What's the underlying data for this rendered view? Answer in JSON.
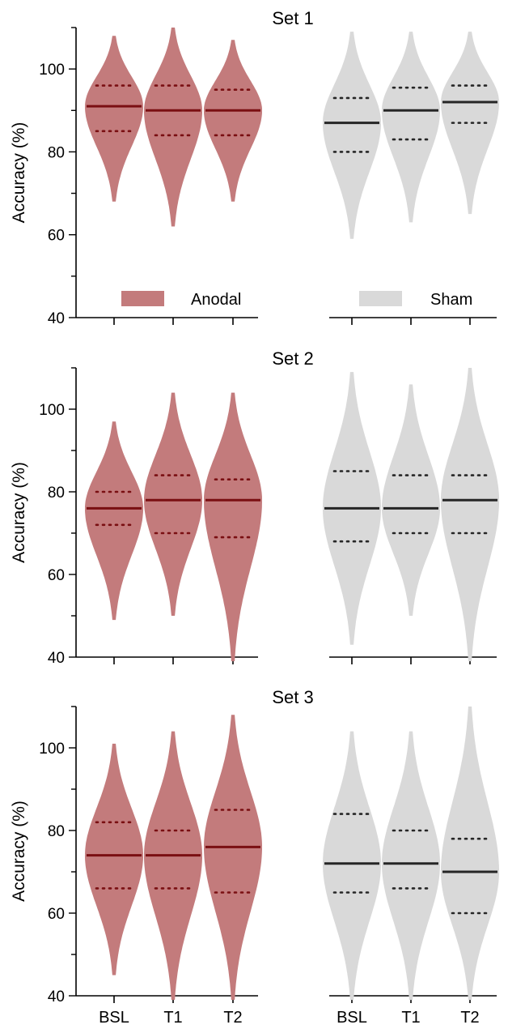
{
  "colors": {
    "anodal": "#c37b7c",
    "anodal_line": "#7a0f12",
    "sham": "#d9d9d9",
    "sham_line": "#262626"
  },
  "legend": {
    "anodal": "Anodal",
    "sham": "Sham"
  },
  "chart_data": [
    {
      "type": "violin",
      "title": "Set 1",
      "ylabel": "Accuracy (%)",
      "ylim": [
        40,
        110
      ],
      "yticks": [
        "40",
        "60",
        "80",
        "100"
      ],
      "legend": "bottom",
      "groups": [
        {
          "name": "Anodal",
          "series": [
            {
              "category": "BSL",
              "min": 68,
              "max": 108,
              "median": 91,
              "q1": 85,
              "q3": 96
            },
            {
              "category": "T1",
              "min": 62,
              "max": 110,
              "median": 90,
              "q1": 84,
              "q3": 96
            },
            {
              "category": "T2",
              "min": 68,
              "max": 107,
              "median": 90,
              "q1": 84,
              "q3": 95
            }
          ]
        },
        {
          "name": "Sham",
          "series": [
            {
              "category": "BSL",
              "min": 59,
              "max": 109,
              "median": 87,
              "q1": 80,
              "q3": 93
            },
            {
              "category": "T1",
              "min": 63,
              "max": 109,
              "median": 90,
              "q1": 83,
              "q3": 95.5
            },
            {
              "category": "T2",
              "min": 65,
              "max": 109,
              "median": 92,
              "q1": 87,
              "q3": 96
            }
          ]
        }
      ]
    },
    {
      "type": "violin",
      "title": "Set 2",
      "ylabel": "Accuracy (%)",
      "ylim": [
        40,
        110
      ],
      "yticks": [
        "40",
        "60",
        "80",
        "100"
      ],
      "groups": [
        {
          "name": "Anodal",
          "series": [
            {
              "category": "BSL",
              "min": 49,
              "max": 97,
              "median": 76,
              "q1": 72,
              "q3": 80
            },
            {
              "category": "T1",
              "min": 50,
              "max": 104,
              "median": 78,
              "q1": 70,
              "q3": 84
            },
            {
              "category": "T2",
              "min": 39,
              "max": 104,
              "median": 78,
              "q1": 69,
              "q3": 83
            }
          ]
        },
        {
          "name": "Sham",
          "series": [
            {
              "category": "BSL",
              "min": 43,
              "max": 109,
              "median": 76,
              "q1": 68,
              "q3": 85
            },
            {
              "category": "T1",
              "min": 50,
              "max": 106,
              "median": 76,
              "q1": 70,
              "q3": 84
            },
            {
              "category": "T2",
              "min": 39,
              "max": 110,
              "median": 78,
              "q1": 70,
              "q3": 84
            }
          ]
        }
      ]
    },
    {
      "type": "violin",
      "title": "Set 3",
      "ylabel": "Accuracy (%)",
      "ylim": [
        40,
        110
      ],
      "yticks": [
        "40",
        "60",
        "80",
        "100"
      ],
      "categories": [
        "BSL",
        "T1",
        "T2",
        "BSL",
        "T1",
        "T2"
      ],
      "groups": [
        {
          "name": "Anodal",
          "series": [
            {
              "category": "BSL",
              "min": 45,
              "max": 101,
              "median": 74,
              "q1": 66,
              "q3": 82
            },
            {
              "category": "T1",
              "min": 39,
              "max": 104,
              "median": 74,
              "q1": 66,
              "q3": 80
            },
            {
              "category": "T2",
              "min": 39,
              "max": 108,
              "median": 76,
              "q1": 65,
              "q3": 85
            }
          ]
        },
        {
          "name": "Sham",
          "series": [
            {
              "category": "BSL",
              "min": 39,
              "max": 104,
              "median": 72,
              "q1": 65,
              "q3": 84
            },
            {
              "category": "T1",
              "min": 39,
              "max": 104,
              "median": 72,
              "q1": 66,
              "q3": 80
            },
            {
              "category": "T2",
              "min": 39,
              "max": 110,
              "median": 70,
              "q1": 60,
              "q3": 78
            }
          ]
        }
      ]
    }
  ]
}
